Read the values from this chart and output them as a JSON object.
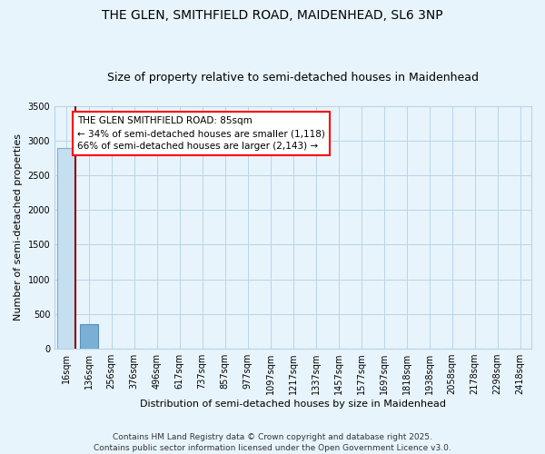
{
  "title": "THE GLEN, SMITHFIELD ROAD, MAIDENHEAD, SL6 3NP",
  "subtitle": "Size of property relative to semi-detached houses in Maidenhead",
  "xlabel": "Distribution of semi-detached houses by size in Maidenhead",
  "ylabel": "Number of semi-detached properties",
  "categories": [
    "16sqm",
    "136sqm",
    "256sqm",
    "376sqm",
    "496sqm",
    "617sqm",
    "737sqm",
    "857sqm",
    "977sqm",
    "1097sqm",
    "1217sqm",
    "1337sqm",
    "1457sqm",
    "1577sqm",
    "1697sqm",
    "1818sqm",
    "1938sqm",
    "2058sqm",
    "2178sqm",
    "2298sqm",
    "2418sqm"
  ],
  "values": [
    2890,
    350,
    5,
    2,
    1,
    1,
    0,
    0,
    0,
    0,
    0,
    0,
    0,
    0,
    0,
    0,
    0,
    0,
    0,
    0,
    0
  ],
  "bar_colors": [
    "#c5dff0",
    "#7ab0d4",
    "#c5dff0",
    "#c5dff0",
    "#c5dff0",
    "#c5dff0",
    "#c5dff0",
    "#c5dff0",
    "#c5dff0",
    "#c5dff0",
    "#c5dff0",
    "#c5dff0",
    "#c5dff0",
    "#c5dff0",
    "#c5dff0",
    "#c5dff0",
    "#c5dff0",
    "#c5dff0",
    "#c5dff0",
    "#c5dff0",
    "#c5dff0"
  ],
  "bar_edge_colors": [
    "#7ab0d4",
    "#5a8fb8",
    "#7ab0d4",
    "#7ab0d4",
    "#7ab0d4",
    "#7ab0d4",
    "#7ab0d4",
    "#7ab0d4",
    "#7ab0d4",
    "#7ab0d4",
    "#7ab0d4",
    "#7ab0d4",
    "#7ab0d4",
    "#7ab0d4",
    "#7ab0d4",
    "#7ab0d4",
    "#7ab0d4",
    "#7ab0d4",
    "#7ab0d4",
    "#7ab0d4",
    "#7ab0d4"
  ],
  "property_bar_index": 0,
  "annotation_text": "THE GLEN SMITHFIELD ROAD: 85sqm\n← 34% of semi-detached houses are smaller (1,118)\n66% of semi-detached houses are larger (2,143) →",
  "vline_color": "#8b0000",
  "ylim": [
    0,
    3500
  ],
  "yticks": [
    0,
    500,
    1000,
    1500,
    2000,
    2500,
    3000,
    3500
  ],
  "footer": "Contains HM Land Registry data © Crown copyright and database right 2025.\nContains public sector information licensed under the Open Government Licence v3.0.",
  "background_color": "#e8f4fb",
  "grid_color": "#b8d4e8",
  "title_fontsize": 10,
  "subtitle_fontsize": 9,
  "tick_fontsize": 7,
  "ylabel_fontsize": 8,
  "xlabel_fontsize": 8,
  "annotation_fontsize": 7.5,
  "footer_fontsize": 6.5
}
